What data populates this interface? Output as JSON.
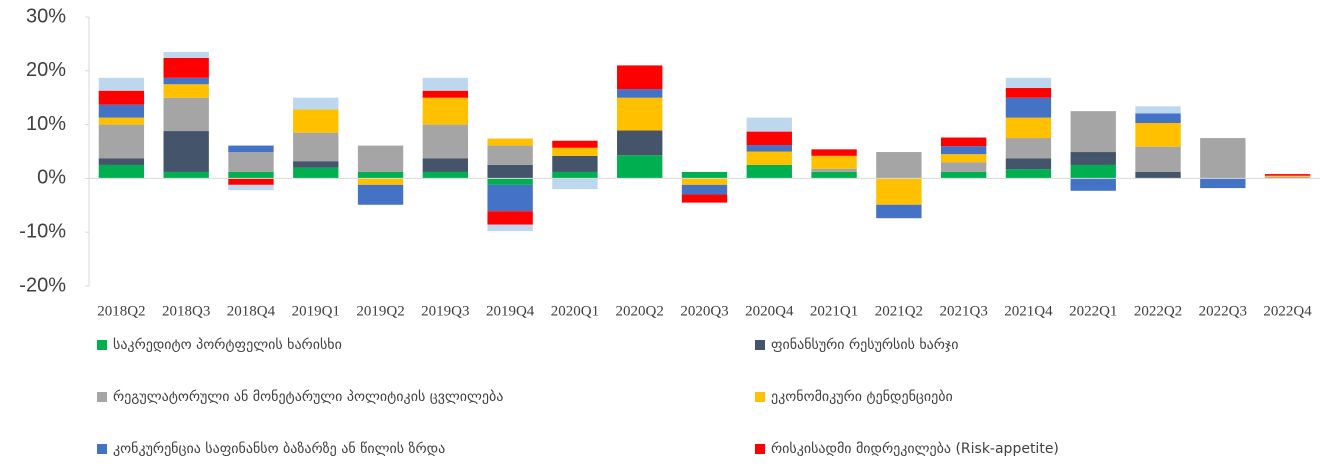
{
  "chart_data": {
    "type": "stacked_bar",
    "categories": [
      "2018Q2",
      "2018Q3",
      "2018Q4",
      "2019Q1",
      "2019Q2",
      "2019Q3",
      "2019Q4",
      "2020Q1",
      "2020Q2",
      "2020Q3",
      "2020Q4",
      "2021Q1",
      "2021Q2",
      "2021Q3",
      "2021Q4",
      "2022Q1",
      "2022Q2",
      "2022Q3",
      "2022Q4"
    ],
    "series": [
      {
        "name": "საკრედიტო პორტფელის ხარისხი",
        "color": "#00b050",
        "values": [
          2.5,
          1.2,
          1.2,
          2.0,
          1.2,
          1.2,
          -1.2,
          1.2,
          4.3,
          1.2,
          2.5,
          1.2,
          0,
          1.2,
          1.7,
          2.5,
          0,
          0,
          0
        ]
      },
      {
        "name": "ფინანსური რესურსის ხარჯი",
        "color": "#44546a",
        "values": [
          1.2,
          7.6,
          0,
          1.2,
          0,
          2.5,
          2.5,
          3.0,
          4.6,
          0,
          0,
          0,
          0,
          0,
          2.0,
          2.4,
          1.2,
          0,
          0
        ]
      },
      {
        "name": "რეგულატორული ან მონეტარული პოლიტიკის ცვლილება",
        "color": "#a5a5a5",
        "values": [
          6.3,
          6.2,
          3.7,
          5.3,
          4.9,
          6.3,
          3.6,
          0,
          0,
          0,
          0,
          0.6,
          4.9,
          1.8,
          3.8,
          7.6,
          4.7,
          7.5,
          0.3
        ]
      },
      {
        "name": "ეკონომიკური ტენდენციები",
        "color": "#ffc000",
        "values": [
          1.3,
          2.5,
          0,
          4.3,
          -1.2,
          5.0,
          1.3,
          1.5,
          6.1,
          -1.2,
          2.5,
          2.4,
          -4.9,
          1.5,
          3.8,
          0,
          4.4,
          0,
          0.2
        ]
      },
      {
        "name": "კონკურენცია საფინანსო ბაზარზე ან წილის ზრდა",
        "color": "#4472c4",
        "values": [
          2.4,
          1.2,
          1.2,
          0,
          -3.7,
          0,
          -4.9,
          0,
          1.6,
          -1.8,
          1.2,
          0,
          -2.5,
          1.5,
          3.7,
          -2.3,
          1.8,
          -1.8,
          0
        ]
      },
      {
        "name": "რისკისადმი მიდრეკილება (Risk-appetite)",
        "color": "#ff0000",
        "values": [
          2.6,
          3.7,
          -1.2,
          0,
          0,
          1.3,
          -2.5,
          1.3,
          4.4,
          -1.5,
          2.5,
          1.2,
          0,
          1.6,
          1.8,
          0,
          0,
          0,
          0.3
        ]
      },
      {
        "color": "#bdd7ee",
        "values": [
          2.4,
          1.1,
          -1.0,
          2.2,
          0,
          2.4,
          -1.2,
          -2.0,
          0,
          0,
          2.6,
          0,
          0,
          0,
          1.9,
          0,
          1.3,
          0,
          0
        ]
      }
    ],
    "ylim": [
      -20,
      30
    ],
    "yticks": [
      {
        "value": -20,
        "label": "-20%"
      },
      {
        "value": -10,
        "label": "-10%"
      },
      {
        "value": 0,
        "label": "0%"
      },
      {
        "value": 10,
        "label": "10%"
      },
      {
        "value": 20,
        "label": "20%"
      },
      {
        "value": 30,
        "label": "30%"
      }
    ]
  }
}
